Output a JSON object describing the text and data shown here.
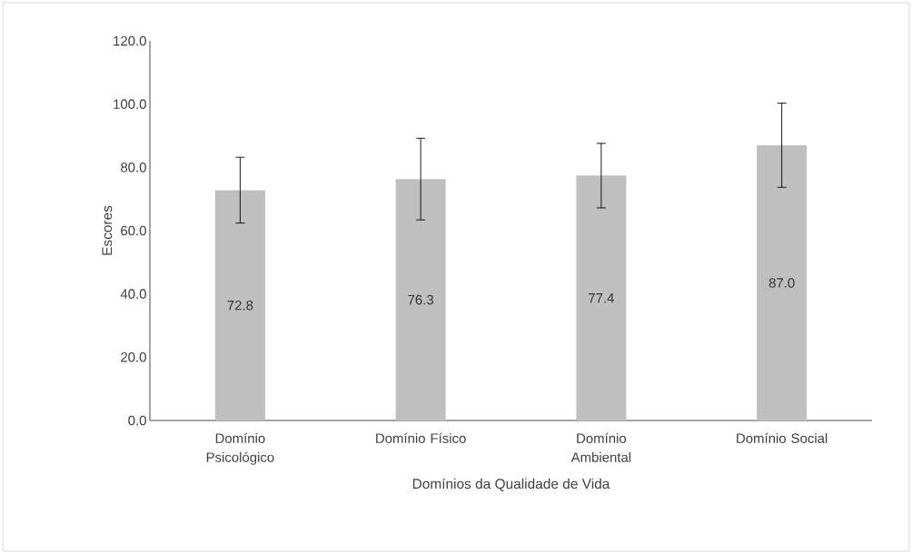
{
  "chart_data": {
    "type": "bar",
    "xlabel": "Domínios da Qualidade de Vida",
    "ylabel": "Escores",
    "categories": [
      "Domínio Psicológico",
      "Domínio Físico",
      "Domínio Ambiental",
      "Domínio Social"
    ],
    "values": [
      72.8,
      76.3,
      77.4,
      87.0
    ],
    "errors": [
      10.4,
      12.9,
      10.2,
      13.3
    ],
    "value_labels": [
      "72.8",
      "76.3",
      "77.4",
      "87.0"
    ],
    "color": "#bfbfbf",
    "yticks": [
      {
        "value": 0,
        "label": "0.0"
      },
      {
        "value": 20,
        "label": "20.0"
      },
      {
        "value": 40,
        "label": "40.0"
      },
      {
        "value": 60,
        "label": "60.0"
      },
      {
        "value": 80,
        "label": "80.0"
      },
      {
        "value": 100,
        "label": "100.0"
      },
      {
        "value": 120,
        "label": "120.0"
      }
    ],
    "ylim": [
      0,
      120
    ]
  }
}
